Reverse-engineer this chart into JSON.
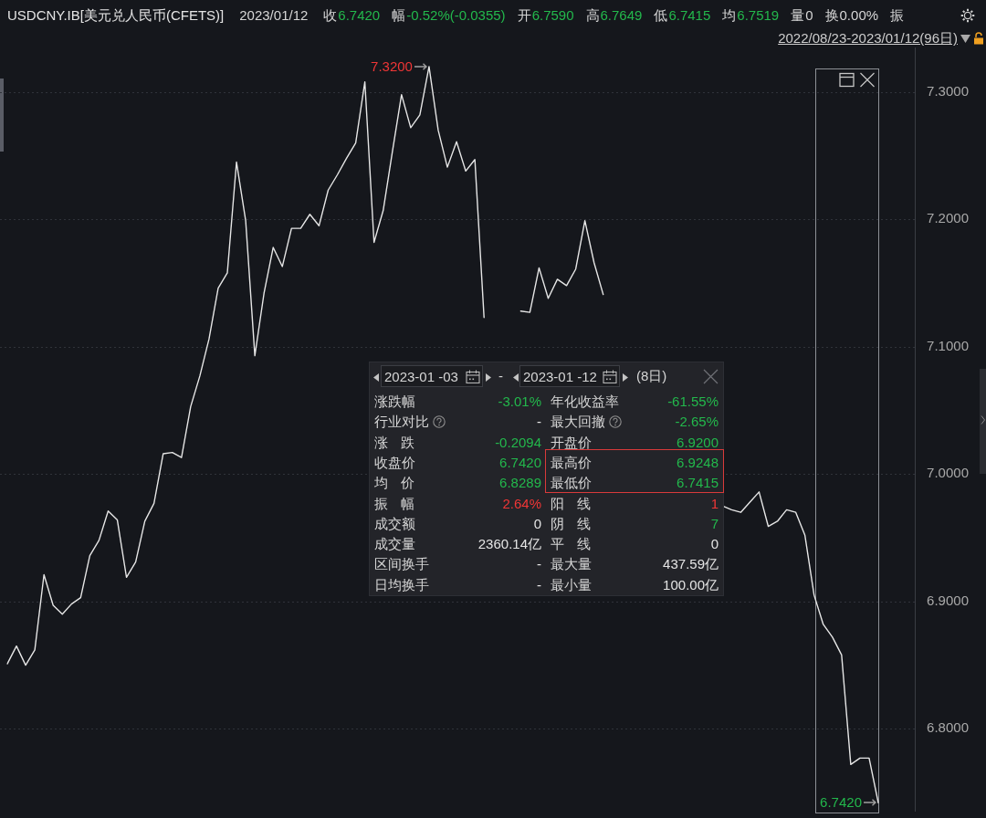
{
  "chart_data": [
    {
      "type": "line",
      "title": "USDCNY.IB[美元兑人民币(CFETS)]",
      "subtitle": "2022/08/23-2023/01/12(96日)",
      "annotations": [
        "2023/01/12",
        "收",
        "6.7420",
        "幅",
        "-0.52%(-0.0355)",
        "开",
        "6.7590",
        "高",
        "6.7649",
        "低",
        "6.7415",
        "均",
        "6.7519",
        "量",
        "0",
        "换",
        "0.00%",
        "振"
      ],
      "categories": [
        null,
        null,
        null,
        null,
        null,
        null,
        null,
        null,
        null,
        null,
        null,
        null,
        null,
        null,
        null,
        null,
        null,
        null,
        null,
        null,
        null,
        null,
        null,
        null,
        null,
        null,
        null,
        null,
        null,
        null,
        null,
        null,
        null,
        null,
        null,
        null,
        null,
        null,
        null,
        null,
        null,
        null,
        null,
        null,
        null,
        null,
        null,
        null,
        null,
        null,
        null,
        null,
        null,
        null,
        null,
        null,
        null,
        null,
        null,
        null,
        null,
        null,
        null,
        null,
        null,
        null,
        null,
        null,
        null,
        null,
        null,
        null,
        null,
        null,
        null,
        null,
        null,
        null,
        null,
        null,
        null,
        null,
        null,
        null,
        null,
        null,
        null,
        null,
        null,
        null,
        null,
        null,
        null,
        null,
        null,
        null
      ],
      "series": [
        {
          "color": "#e6e6e6",
          "values": [
            6.851,
            6.865,
            6.85,
            6.862,
            6.921,
            6.897,
            6.89,
            6.898,
            6.903,
            6.936,
            6.948,
            6.971,
            6.964,
            6.919,
            6.931,
            6.963,
            6.977,
            7.016,
            7.017,
            7.013,
            7.053,
            7.077,
            7.106,
            7.146,
            7.158,
            7.245,
            7.199,
            7.093,
            7.142,
            7.178,
            7.163,
            7.193,
            7.193,
            7.204,
            7.195,
            7.223,
            7.235,
            7.248,
            7.26,
            7.308,
            7.182,
            7.207,
            7.253,
            7.298,
            7.272,
            7.282,
            7.32,
            7.27,
            7.241,
            7.261,
            7.238,
            7.247,
            7.123,
            null,
            null,
            null,
            null,
            null,
            null,
            null,
            null,
            null,
            null,
            null,
            null,
            null,
            null,
            null,
            null,
            null,
            null,
            null,
            null,
            null,
            null,
            null,
            null,
            null,
            null,
            null,
            null,
            null,
            null,
            null,
            null,
            null,
            null,
            null,
            null,
            null,
            null,
            null,
            null,
            null,
            null,
            null
          ],
          "value_labels": [
            null,
            null,
            null,
            null,
            null,
            null,
            null,
            null,
            null,
            null,
            null,
            null,
            null,
            null,
            null,
            null,
            null,
            null,
            null,
            null,
            null,
            null,
            null,
            null,
            null,
            null,
            null,
            null,
            null,
            null,
            null,
            null,
            null,
            null,
            null,
            null,
            null,
            null,
            null,
            null,
            null,
            null,
            null,
            null,
            null,
            null,
            "7.3200",
            null,
            null,
            null,
            null,
            null,
            null,
            null,
            null,
            null,
            null,
            null,
            null,
            null,
            null,
            null,
            null,
            null,
            null,
            null,
            null,
            null,
            null,
            null,
            null,
            null,
            null,
            null,
            null,
            null,
            null,
            null,
            null,
            null,
            null,
            null,
            null,
            null,
            null,
            null,
            null,
            null,
            null,
            null,
            null,
            null,
            null,
            null,
            null,
            null
          ]
        },
        {
          "color": "#e6e6e6",
          "values": [
            null,
            null,
            null,
            null,
            null,
            null,
            null,
            null,
            null,
            null,
            null,
            null,
            null,
            null,
            null,
            null,
            null,
            null,
            null,
            null,
            null,
            null,
            null,
            null,
            null,
            null,
            null,
            null,
            null,
            null,
            null,
            null,
            null,
            null,
            null,
            null,
            null,
            null,
            null,
            null,
            null,
            null,
            null,
            null,
            null,
            null,
            null,
            null,
            null,
            null,
            null,
            null,
            null,
            null,
            null,
            null,
            7.128,
            7.127,
            7.162,
            7.138,
            7.153,
            7.148,
            7.161,
            7.199,
            7.166,
            7.141,
            null,
            null,
            null,
            null,
            null,
            null,
            null,
            null,
            null,
            null,
            null,
            null,
            null,
            null,
            null,
            null,
            null,
            null,
            null,
            null,
            null,
            null,
            null,
            null,
            null,
            null,
            null,
            null,
            null,
            null
          ]
        },
        {
          "color": "#e6e6e6",
          "values": [
            null,
            null,
            null,
            null,
            null,
            null,
            null,
            null,
            null,
            null,
            null,
            null,
            null,
            null,
            null,
            null,
            null,
            null,
            null,
            null,
            null,
            null,
            null,
            null,
            null,
            null,
            null,
            null,
            null,
            null,
            null,
            null,
            null,
            null,
            null,
            null,
            null,
            null,
            null,
            null,
            null,
            null,
            null,
            null,
            null,
            null,
            null,
            null,
            null,
            null,
            null,
            null,
            null,
            null,
            null,
            null,
            null,
            null,
            null,
            null,
            null,
            null,
            null,
            null,
            null,
            null,
            null,
            null,
            null,
            null,
            null,
            null,
            null,
            null,
            null,
            null,
            null,
            null,
            6.975,
            6.972,
            6.97,
            6.978,
            6.986,
            6.959,
            6.963,
            6.972,
            6.97,
            6.952,
            6.905,
            6.882,
            6.872,
            6.858,
            6.772,
            6.777,
            6.777,
            6.742
          ],
          "value_labels": [
            null,
            null,
            null,
            null,
            null,
            null,
            null,
            null,
            null,
            null,
            null,
            null,
            null,
            null,
            null,
            null,
            null,
            null,
            null,
            null,
            null,
            null,
            null,
            null,
            null,
            null,
            null,
            null,
            null,
            null,
            null,
            null,
            null,
            null,
            null,
            null,
            null,
            null,
            null,
            null,
            null,
            null,
            null,
            null,
            null,
            null,
            null,
            null,
            null,
            null,
            null,
            null,
            null,
            null,
            null,
            null,
            null,
            null,
            null,
            null,
            null,
            null,
            null,
            null,
            null,
            null,
            null,
            null,
            null,
            null,
            null,
            null,
            null,
            null,
            null,
            null,
            null,
            null,
            null,
            null,
            null,
            null,
            null,
            null,
            null,
            null,
            null,
            null,
            null,
            null,
            null,
            null,
            null,
            null,
            null,
            "6.7420"
          ]
        }
      ],
      "ylim": [
        6.735,
        7.335
      ],
      "yticks": [
        {
          "value": 6.8,
          "label": "6.8000"
        },
        {
          "value": 6.9,
          "label": "6.9000"
        },
        {
          "value": 7.0,
          "label": "7.0000"
        },
        {
          "value": 7.1,
          "label": "7.1000"
        },
        {
          "value": 7.2,
          "label": "7.2000"
        },
        {
          "value": 7.3,
          "label": "7.3000"
        }
      ],
      "grid": "y",
      "marker": "none",
      "line_style": "solid"
    },
    {
      "type": "other",
      "annotations": [
        "2023-01 -03",
        "-",
        "2023-01 -12",
        "(8日)",
        "涨跌幅",
        "-3.01%",
        "年化收益率",
        "-61.55%",
        "行业对比",
        "-",
        "最大回撤",
        "-2.65%",
        "涨 跌",
        "-0.2094",
        "开盘价",
        "6.9200",
        "收盘价",
        "6.7420",
        "最高价",
        "6.9248",
        "均 价",
        "6.8289",
        "最低价",
        "6.7415",
        "振 幅",
        "2.64%",
        "阳 线",
        "1",
        "成交额",
        "0",
        "阴 线",
        "7",
        "成交量",
        "2360.14亿",
        "平 线",
        "0",
        "区间换手",
        "-",
        "最大量",
        "437.59亿",
        "日均换手",
        "-",
        "最小量",
        "100.00亿"
      ]
    }
  ]
}
